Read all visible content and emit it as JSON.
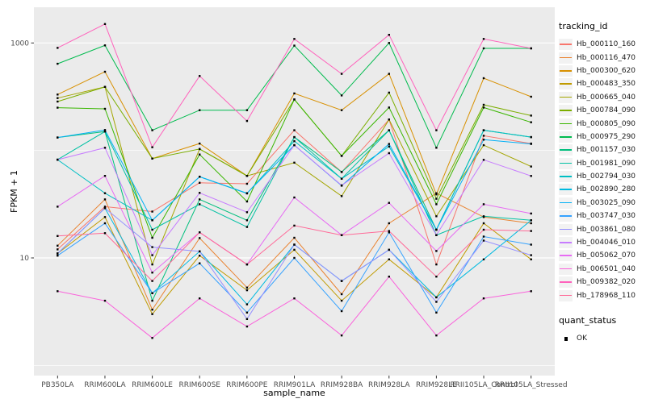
{
  "figure": {
    "x_axis": {
      "label": "sample_name"
    },
    "y_axis": {
      "label": "FPKM + 1",
      "scale": "log10",
      "tick_labels": [
        "1000",
        "10"
      ]
    },
    "legend": {
      "tracking": {
        "title": "tracking_id"
      },
      "quant": {
        "title": "quant_status",
        "ok_label": "OK",
        "ok_symbol": "black-square-point"
      }
    },
    "colors": {
      "panel_background": "#EBEBEB",
      "grid": "#FFFFFF",
      "tick_text": "#4D4D4D",
      "point": "#000000"
    }
  },
  "chart_data": {
    "type": "line",
    "title": "",
    "xlabel": "sample_name",
    "ylabel": "FPKM + 1",
    "y_scale": "log10",
    "y_ticks": [
      1000,
      10
    ],
    "y_minor_ticks": [
      100,
      1
    ],
    "ylim": [
      1.5,
      1600
    ],
    "grid": "white on gray panel",
    "legend_position": "right",
    "points": "black squares at every vertex (quant_status = OK)",
    "categories": [
      "PB350LA",
      "RRIM600LA",
      "RRIM600LE",
      "RRIM600SE",
      "RRIM600PE",
      "RRIM901LA",
      "RRIM928BA",
      "RRIM928LA",
      "RRIM928LE",
      "RRII105LA_Control",
      "RRII105LA_Stressed"
    ],
    "series": [
      {
        "name": "Hb_000110_160",
        "color": "#F8766D",
        "values": [
          12,
          30,
          27,
          50,
          49,
          154,
          63,
          194,
          8.7,
          137,
          116
        ]
      },
      {
        "name": "Hb_000116_470",
        "color": "#EA8331",
        "values": [
          13,
          35,
          3.3,
          15.3,
          5.3,
          15.4,
          4.6,
          21,
          40,
          24,
          21
        ]
      },
      {
        "name": "Hb_000300_620",
        "color": "#D89000",
        "values": [
          331,
          540,
          84,
          116,
          58,
          339,
          237,
          516,
          39,
          470,
          316
        ]
      },
      {
        "name": "Hb_000483_350",
        "color": "#C09B00",
        "values": [
          11,
          24,
          3.0,
          10.5,
          5.0,
          11.9,
          4.0,
          9.7,
          4.3,
          21,
          9.7
        ]
      },
      {
        "name": "Hb_000665_040",
        "color": "#A3A500",
        "values": [
          307,
          390,
          8.7,
          103,
          58,
          77,
          37.6,
          194,
          24.4,
          112,
          70.8
        ]
      },
      {
        "name": "Hb_000784_090",
        "color": "#7CAE00",
        "values": [
          285,
          390,
          84,
          103,
          58,
          298,
          89,
          345,
          35.5,
          266,
          211
        ]
      },
      {
        "name": "Hb_000805_090",
        "color": "#39B600",
        "values": [
          250,
          244,
          15.4,
          91.7,
          33.5,
          298,
          89,
          251,
          31.6,
          251,
          183
        ]
      },
      {
        "name": "Hb_000975_290",
        "color": "#00BB4E",
        "values": [
          640,
          950,
          154,
          237,
          237,
          944,
          325,
          1000,
          106,
          891,
          891
        ]
      },
      {
        "name": "Hb_001157_030",
        "color": "#00BF7D",
        "values": [
          132,
          150,
          4.0,
          35,
          22.4,
          133,
          63,
          154,
          18.3,
          154,
          133
        ]
      },
      {
        "name": "Hb_001981_090",
        "color": "#00C1A3",
        "values": [
          82,
          150,
          18.3,
          31.6,
          19.4,
          133,
          54.6,
          154,
          16.3,
          24.4,
          22.4
        ]
      },
      {
        "name": "Hb_002794_030",
        "color": "#00BFC4",
        "values": [
          82,
          40,
          22.4,
          56.9,
          39.8,
          122,
          54.6,
          109,
          18.3,
          154,
          133
        ]
      },
      {
        "name": "Hb_002890_280",
        "color": "#00BAE0",
        "values": [
          11,
          29,
          4.7,
          11.5,
          3.7,
          13.3,
          6.1,
          11.9,
          4.3,
          9.7,
          22.4
        ]
      },
      {
        "name": "Hb_003025_090",
        "color": "#00B0F6",
        "values": [
          132,
          155,
          22.4,
          57,
          40,
          112,
          47,
          115,
          18.3,
          126,
          115
        ]
      },
      {
        "name": "Hb_003747_030",
        "color": "#35A2FF",
        "values": [
          10.5,
          21,
          4.7,
          8.9,
          3.1,
          10,
          3.2,
          17.3,
          3.1,
          15.8,
          13.3
        ]
      },
      {
        "name": "Hb_003861_080",
        "color": "#9590FF",
        "values": [
          11,
          29,
          12.6,
          11.5,
          2.7,
          13.3,
          6.1,
          11.9,
          3.9,
          14.5,
          10.6
        ]
      },
      {
        "name": "Hb_004046_010",
        "color": "#C77CFF",
        "values": [
          82,
          106,
          10.6,
          40.3,
          26.6,
          112,
          47.3,
          94.4,
          16.3,
          81.8,
          57.9
        ]
      },
      {
        "name": "Hb_005062_070",
        "color": "#E76BF3",
        "values": [
          30,
          58,
          7.3,
          17.3,
          8.7,
          36.5,
          16.3,
          32.5,
          11.6,
          31.6,
          25.9
        ]
      },
      {
        "name": "Hb_006501_040",
        "color": "#FA62DB",
        "values": [
          4.9,
          4.0,
          1.8,
          4.2,
          2.3,
          4.2,
          1.9,
          6.7,
          1.9,
          4.2,
          4.9
        ]
      },
      {
        "name": "Hb_009382_020",
        "color": "#FF62BC",
        "values": [
          900,
          1500,
          107,
          493,
          188,
          1090,
          516,
          1190,
          154,
          1090,
          891
        ]
      },
      {
        "name": "Hb_178968_110",
        "color": "#FF6A98",
        "values": [
          16,
          17,
          6.1,
          17.3,
          8.7,
          20,
          16.3,
          17.8,
          6.7,
          18.3,
          17.8
        ]
      }
    ]
  }
}
